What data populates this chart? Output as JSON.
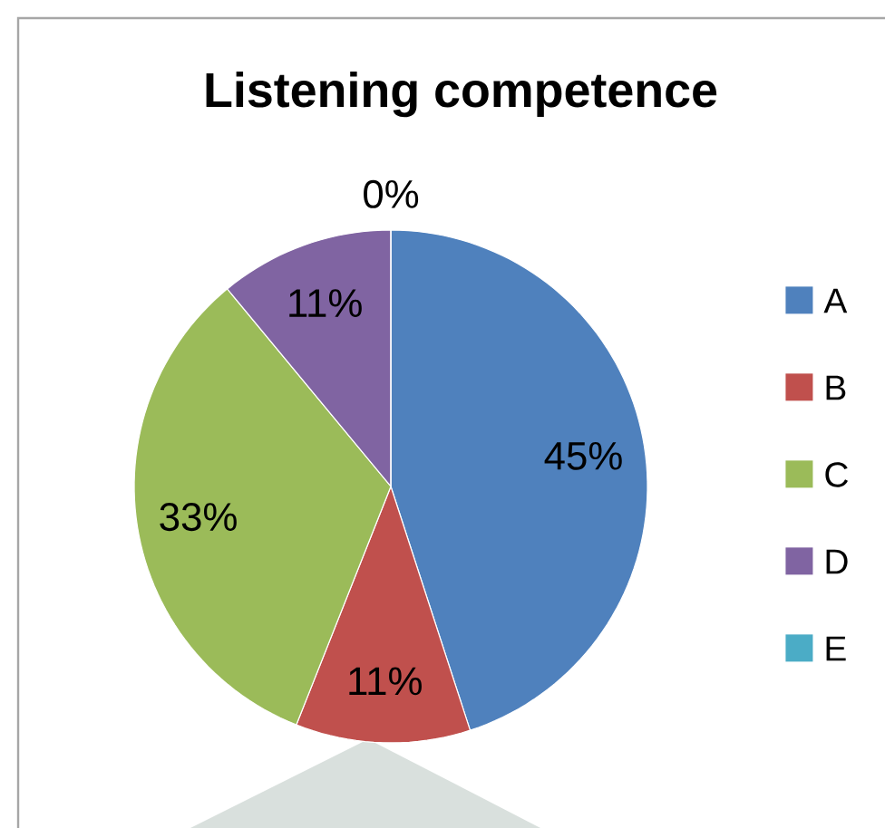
{
  "chart_data": {
    "type": "pie",
    "title": "Listening competence",
    "categories": [
      "A",
      "B",
      "C",
      "D",
      "E"
    ],
    "values": [
      45,
      11,
      33,
      11,
      0
    ],
    "colors": [
      "#4f81bd",
      "#c0504d",
      "#9bbb59",
      "#8064a2",
      "#4bacc6"
    ],
    "value_labels": [
      "45%",
      "11%",
      "33%",
      "11%",
      "0%"
    ],
    "legend": "right"
  }
}
